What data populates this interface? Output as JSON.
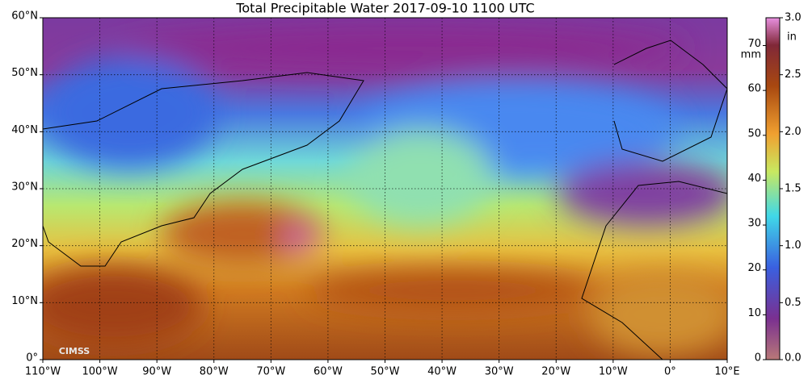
{
  "title": "Total Precipitable Water  2017-09-10 1100 UTC",
  "map": {
    "lonlim": [
      -110,
      10
    ],
    "latlim": [
      0,
      60
    ],
    "lon_ticks": [
      {
        "value": -110,
        "label": "110°W"
      },
      {
        "value": -100,
        "label": "100°W"
      },
      {
        "value": -90,
        "label": "90°W"
      },
      {
        "value": -80,
        "label": "80°W"
      },
      {
        "value": -70,
        "label": "70°W"
      },
      {
        "value": -60,
        "label": "60°W"
      },
      {
        "value": -50,
        "label": "50°W"
      },
      {
        "value": -40,
        "label": "40°W"
      },
      {
        "value": -30,
        "label": "30°W"
      },
      {
        "value": -20,
        "label": "20°W"
      },
      {
        "value": -10,
        "label": "10°W"
      },
      {
        "value": 0,
        "label": "0°"
      },
      {
        "value": 10,
        "label": "10°E"
      }
    ],
    "lat_ticks": [
      {
        "value": 0,
        "label": "0°"
      },
      {
        "value": 10,
        "label": "10°N"
      },
      {
        "value": 20,
        "label": "20°N"
      },
      {
        "value": 30,
        "label": "30°N"
      },
      {
        "value": 40,
        "label": "40°N"
      },
      {
        "value": 50,
        "label": "50°N"
      },
      {
        "value": 60,
        "label": "60°N"
      }
    ],
    "grid": true,
    "logo": "CIMSS"
  },
  "colorbar": {
    "mm_lim": [
      0,
      76.2
    ],
    "mm_ticks": [
      0,
      10,
      20,
      30,
      40,
      50,
      60,
      70
    ],
    "mm_unit": "mm",
    "in_lim": [
      0,
      3.0
    ],
    "in_ticks": [
      {
        "value": 0,
        "label": "0.0"
      },
      0.5,
      {
        "value": 1,
        "label": "1.0"
      },
      1.5,
      {
        "value": 2,
        "label": "2.0"
      },
      2.5,
      {
        "value": 3,
        "label": "3.0"
      }
    ],
    "in_unit": "in"
  }
}
